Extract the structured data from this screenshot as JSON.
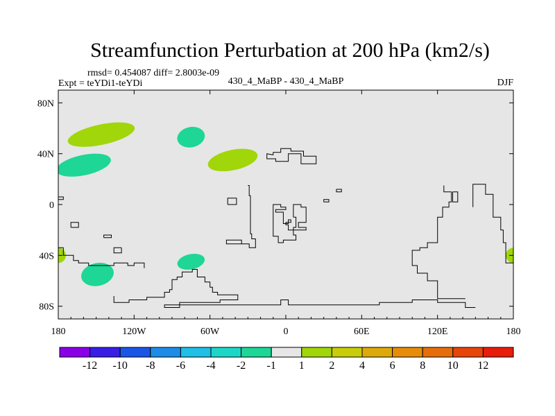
{
  "chart_data": {
    "type": "heatmap",
    "title": "Streamfunction Perturbation at 200 hPa (km2/s)",
    "rmsd_line": "rmsd= 0.454087 diff= 2.8003e-09",
    "left_label": "Expt = teYDi1-teYDi",
    "center_label": "430_4_MaBP - 430_4_MaBP",
    "right_label": "DJF",
    "x_ticks": [
      {
        "value": -180,
        "label": "180"
      },
      {
        "value": -120,
        "label": "120W"
      },
      {
        "value": -60,
        "label": "60W"
      },
      {
        "value": 0,
        "label": "0"
      },
      {
        "value": 60,
        "label": "60E"
      },
      {
        "value": 120,
        "label": "120E"
      },
      {
        "value": 180,
        "label": "180"
      }
    ],
    "y_ticks": [
      {
        "value": 80,
        "label": "80N"
      },
      {
        "value": 40,
        "label": "40N"
      },
      {
        "value": 0,
        "label": "0"
      },
      {
        "value": -40,
        "label": "40S"
      },
      {
        "value": -80,
        "label": "80S"
      }
    ],
    "xlim": [
      -180,
      180
    ],
    "ylim": [
      -90,
      90
    ],
    "background_color": "#e6e6e6",
    "colorbar": {
      "colors": [
        "#8a00e6",
        "#3a1ee6",
        "#1a55e6",
        "#1e8ce6",
        "#1fbfe6",
        "#1ed6c8",
        "#1ed696",
        "#e6e6e6",
        "#a0d60a",
        "#c8cc0a",
        "#dcaa0a",
        "#e68c0a",
        "#e66e0a",
        "#e6460a",
        "#e61e0a"
      ],
      "labels": [
        "-12",
        "-10",
        "-8",
        "-6",
        "-4",
        "-2",
        "-1",
        "1",
        "2",
        "4",
        "6",
        "8",
        "10",
        "12"
      ]
    },
    "anomalies": [
      {
        "name": "positive-anomaly-npacific",
        "lon": -146,
        "lat": 55,
        "rlon": 27,
        "rlat": 8,
        "color": "#a0d60a"
      },
      {
        "name": "positive-anomaly-cpacific",
        "lon": -160,
        "lat": 31,
        "rlon": 22,
        "rlat": 8,
        "color": "#1ed696"
      },
      {
        "name": "negative-anomaly-ncanada",
        "lon": -75,
        "lat": 53,
        "rlon": 11,
        "rlat": 8,
        "color": "#1ed696"
      },
      {
        "name": "positive-anomaly-natlantic",
        "lon": -42,
        "lat": 35,
        "rlon": 20,
        "rlat": 8,
        "color": "#a0d60a"
      },
      {
        "name": "negative-anomaly-spacific",
        "lon": -149,
        "lat": -55,
        "rlon": 13,
        "rlat": 9,
        "color": "#1ed696"
      },
      {
        "name": "negative-anomaly-satlantic",
        "lon": -75,
        "lat": -45,
        "rlon": 11,
        "rlat": 6,
        "color": "#1ed696"
      },
      {
        "name": "positive-anomaly-dateline-west",
        "lon": -180,
        "lat": -40,
        "rlon": 6,
        "rlat": 6,
        "color": "#a0d60a"
      },
      {
        "name": "positive-anomaly-dateline-east",
        "lon": 180,
        "lat": -40,
        "rlon": 6,
        "rlat": 6,
        "color": "#a0d60a"
      }
    ],
    "coastlines": [
      [
        [
          -10,
          39
        ],
        [
          -15,
          40
        ],
        [
          -15,
          36
        ],
        [
          -8,
          36
        ],
        [
          -8,
          34
        ],
        [
          2,
          34
        ],
        [
          2,
          40
        ],
        [
          12,
          40
        ],
        [
          12,
          32
        ],
        [
          24,
          32
        ],
        [
          24,
          38
        ],
        [
          14,
          38
        ],
        [
          14,
          42
        ],
        [
          4,
          42
        ],
        [
          4,
          44
        ],
        [
          -4,
          44
        ],
        [
          -4,
          41
        ],
        [
          -10,
          41
        ],
        [
          -10,
          39
        ]
      ],
      [
        [
          -30,
          15
        ],
        [
          -29,
          15
        ],
        [
          -29,
          7
        ],
        [
          -28,
          7
        ],
        [
          -28,
          -23
        ],
        [
          -27,
          -23
        ],
        [
          -27,
          -27
        ],
        [
          -24,
          -27
        ],
        [
          -24,
          -34
        ],
        [
          -29,
          -34
        ],
        [
          -29,
          -31
        ],
        [
          -35,
          -31
        ],
        [
          -35,
          -28
        ],
        [
          -47,
          -28
        ],
        [
          -47,
          -31
        ],
        [
          -29,
          -31
        ]
      ],
      [
        [
          -46,
          0
        ],
        [
          -46,
          5
        ],
        [
          -39,
          5
        ],
        [
          -39,
          0
        ],
        [
          -46,
          0
        ]
      ],
      [
        [
          -10,
          -16
        ],
        [
          -10,
          0
        ],
        [
          -4,
          0
        ],
        [
          -4,
          -2
        ],
        [
          0,
          -2
        ],
        [
          0,
          -4
        ],
        [
          -8,
          -4
        ],
        [
          -8,
          -6
        ],
        [
          -2,
          -6
        ],
        [
          -2,
          -15
        ],
        [
          2,
          -15
        ],
        [
          2,
          -12
        ],
        [
          4,
          -12
        ],
        [
          4,
          -14
        ],
        [
          0,
          -14
        ],
        [
          0,
          -16
        ],
        [
          2,
          -16
        ],
        [
          2,
          -20
        ],
        [
          6,
          -20
        ],
        [
          6,
          -24
        ],
        [
          8,
          -24
        ],
        [
          8,
          -28
        ],
        [
          -2,
          -28
        ],
        [
          -2,
          -30
        ],
        [
          -6,
          -30
        ],
        [
          -6,
          -25
        ],
        [
          -10,
          -25
        ],
        [
          -10,
          -16
        ]
      ],
      [
        [
          6,
          -10
        ],
        [
          6,
          0
        ],
        [
          12,
          0
        ],
        [
          12,
          -2
        ],
        [
          16,
          -2
        ],
        [
          16,
          -14
        ],
        [
          10,
          -14
        ],
        [
          10,
          -18
        ],
        [
          16,
          -18
        ],
        [
          16,
          -20
        ],
        [
          6,
          -20
        ],
        [
          6,
          -18
        ],
        [
          8,
          -18
        ],
        [
          8,
          -10
        ],
        [
          6,
          -10
        ]
      ],
      [
        [
          -13,
          -4
        ],
        [
          -13,
          -4
        ]
      ],
      [
        [
          40,
          12
        ],
        [
          40,
          10
        ],
        [
          44,
          10
        ],
        [
          44,
          12
        ],
        [
          40,
          12
        ]
      ],
      [
        [
          30,
          2
        ],
        [
          30,
          4
        ],
        [
          34,
          4
        ],
        [
          34,
          2
        ],
        [
          30,
          2
        ]
      ],
      [
        [
          125,
          15
        ],
        [
          125,
          10
        ],
        [
          131,
          10
        ],
        [
          131,
          2
        ],
        [
          129,
          2
        ],
        [
          129,
          -2
        ],
        [
          124,
          -2
        ],
        [
          124,
          -10
        ],
        [
          120,
          -10
        ],
        [
          120,
          -30
        ],
        [
          112,
          -30
        ],
        [
          112,
          -34
        ],
        [
          106,
          -34
        ],
        [
          106,
          -36
        ],
        [
          100,
          -36
        ],
        [
          100,
          -48
        ],
        [
          104,
          -48
        ],
        [
          104,
          -54
        ],
        [
          112,
          -54
        ],
        [
          112,
          -60
        ],
        [
          120,
          -60
        ],
        [
          120,
          -74
        ],
        [
          142,
          -74
        ]
      ],
      [
        [
          132,
          10
        ],
        [
          132,
          2
        ],
        [
          136,
          2
        ],
        [
          136,
          10
        ],
        [
          132,
          10
        ]
      ],
      [
        [
          148,
          -2
        ],
        [
          148,
          16
        ],
        [
          158,
          16
        ],
        [
          158,
          8
        ],
        [
          164,
          8
        ],
        [
          164,
          -10
        ],
        [
          170,
          -10
        ],
        [
          170,
          -20
        ],
        [
          172,
          -20
        ],
        [
          172,
          -30
        ],
        [
          174,
          -30
        ],
        [
          174,
          -46
        ],
        [
          180,
          -46
        ]
      ],
      [
        [
          -180,
          -60
        ],
        [
          -180,
          -60
        ]
      ],
      [
        [
          -170,
          -18
        ],
        [
          -170,
          -14
        ],
        [
          -164,
          -14
        ],
        [
          -164,
          -18
        ],
        [
          -170,
          -18
        ]
      ],
      [
        [
          -180,
          6
        ],
        [
          -176,
          6
        ],
        [
          -176,
          4
        ],
        [
          -180,
          4
        ]
      ],
      [
        [
          -180,
          -34
        ],
        [
          -176,
          -34
        ],
        [
          -176,
          -40
        ],
        [
          -168,
          -40
        ],
        [
          -168,
          -44
        ],
        [
          -164,
          -44
        ],
        [
          -164,
          -46
        ],
        [
          -156,
          -46
        ],
        [
          -156,
          -48
        ],
        [
          -136,
          -48
        ],
        [
          -136,
          -46
        ],
        [
          -125,
          -46
        ],
        [
          -125,
          -48
        ],
        [
          -120,
          -48
        ],
        [
          -120,
          -46
        ],
        [
          -112,
          -46
        ],
        [
          -112,
          -50
        ]
      ],
      [
        [
          -144,
          -26
        ],
        [
          -144,
          -24
        ],
        [
          -138,
          -24
        ],
        [
          -138,
          -26
        ],
        [
          -144,
          -26
        ]
      ],
      [
        [
          -130,
          -34
        ],
        [
          -130,
          -38
        ],
        [
          -136,
          -38
        ],
        [
          -136,
          -34
        ],
        [
          -130,
          -34
        ]
      ],
      [
        [
          -136,
          -72
        ],
        [
          -136,
          -77
        ],
        [
          -124,
          -77
        ],
        [
          -124,
          -75
        ],
        [
          -110,
          -75
        ],
        [
          -110,
          -73
        ],
        [
          -96,
          -73
        ],
        [
          -96,
          -69
        ],
        [
          -92,
          -69
        ],
        [
          -92,
          -67
        ],
        [
          -90,
          -67
        ],
        [
          -90,
          -59
        ],
        [
          -86,
          -59
        ],
        [
          -86,
          -57
        ],
        [
          -82,
          -57
        ],
        [
          -82,
          -53
        ],
        [
          -74,
          -53
        ],
        [
          -74,
          -51
        ],
        [
          -70,
          -51
        ],
        [
          -70,
          -57
        ],
        [
          -64,
          -57
        ],
        [
          -64,
          -61
        ],
        [
          -60,
          -61
        ],
        [
          -60,
          -65
        ],
        [
          -58,
          -65
        ],
        [
          -58,
          -69
        ],
        [
          -54,
          -69
        ],
        [
          -54,
          -71
        ],
        [
          -38,
          -71
        ],
        [
          -38,
          -75
        ],
        [
          -52,
          -75
        ],
        [
          -52,
          -77
        ],
        [
          -84,
          -77
        ],
        [
          -84,
          -79
        ],
        [
          -96,
          -79
        ],
        [
          -96,
          -81
        ],
        [
          -84,
          -81
        ],
        [
          -84,
          -79
        ],
        [
          -52,
          -79
        ],
        [
          -52,
          -79
        ],
        [
          -4,
          -79
        ],
        [
          -4,
          -75
        ],
        [
          2,
          -75
        ],
        [
          2,
          -79
        ],
        [
          74,
          -79
        ],
        [
          74,
          -77
        ],
        [
          100,
          -77
        ],
        [
          100,
          -75
        ],
        [
          120,
          -75
        ],
        [
          120,
          -77
        ],
        [
          142,
          -77
        ],
        [
          142,
          -81
        ],
        [
          150,
          -81
        ]
      ],
      [
        [
          -180,
          -90
        ],
        [
          -180,
          -90
        ]
      ]
    ]
  }
}
